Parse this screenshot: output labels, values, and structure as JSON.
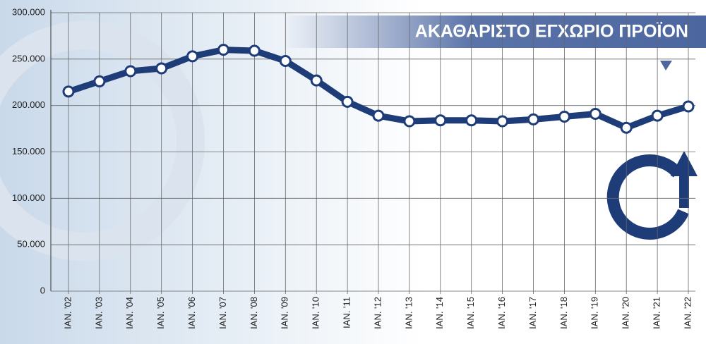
{
  "chart_data": {
    "type": "line",
    "title": "ΑΚΑΘΑΡΙΣΤΟ ΕΓΧΩΡΙΟ ΠΡΟΪΟΝ",
    "categories": [
      "ΙΑΝ. '02",
      "ΙΑΝ. '03",
      "ΙΑΝ. '04",
      "ΙΑΝ. '05",
      "ΙΑΝ. '06",
      "ΙΑΝ. '07",
      "ΙΑΝ. '08",
      "ΙΑΝ. '09",
      "ΙΑΝ. '10",
      "ΙΑΝ. '11",
      "ΙΑΝ. '12",
      "ΙΑΝ. '13",
      "ΙΑΝ. '14",
      "ΙΑΝ. '15",
      "ΙΑΝ. '16",
      "ΙΑΝ. '17",
      "ΙΑΝ. '18",
      "ΙΑΝ. '19",
      "ΙΑΝ. '20",
      "ΙΑΝ. '21",
      "ΙΑΝ. '22"
    ],
    "values": [
      215000,
      226000,
      237000,
      240000,
      253000,
      260000,
      259000,
      248000,
      227000,
      204000,
      189000,
      183000,
      184000,
      184000,
      183000,
      185000,
      188000,
      191000,
      176000,
      189000,
      199000
    ],
    "color": "#1d3c78",
    "ylim": [
      0,
      300000
    ],
    "yticks": [
      0,
      {
        "value": 50000,
        "label": "50.000"
      },
      {
        "value": 100000,
        "label": "100.000"
      },
      {
        "value": 150000,
        "label": "150.000"
      },
      {
        "value": 200000,
        "label": "200.000"
      },
      {
        "value": 250000,
        "label": "250.000"
      },
      {
        "value": 300000,
        "label": "300.000"
      }
    ],
    "grid": true
  }
}
